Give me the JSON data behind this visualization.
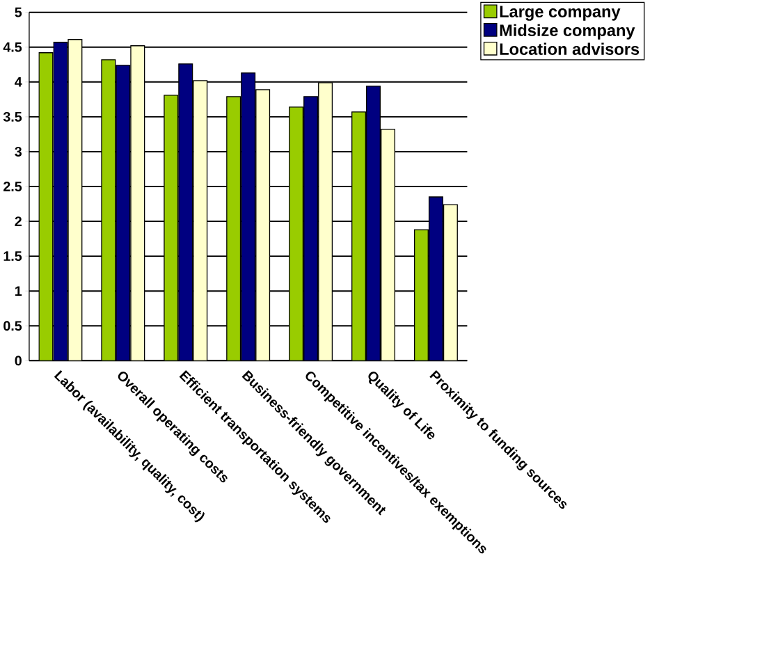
{
  "chart_data": {
    "type": "bar",
    "categories": [
      "Labor (availability, quality, cost)",
      "Overall operating costs",
      "Efficient transportation systems",
      "Business-friendly government",
      "Competitive incentives/tax exemptions",
      "Quality of Life",
      "Proximity to funding sources"
    ],
    "series": [
      {
        "name": "Large company",
        "color": "#99cc00",
        "values": [
          4.42,
          4.32,
          3.81,
          3.79,
          3.64,
          3.57,
          1.88
        ]
      },
      {
        "name": "Midsize company",
        "color": "#000080",
        "values": [
          4.57,
          4.24,
          4.26,
          4.13,
          3.79,
          3.94,
          2.35
        ]
      },
      {
        "name": "Location advisors",
        "color": "#ffffcc",
        "values": [
          4.61,
          4.52,
          4.02,
          3.89,
          3.99,
          3.32,
          2.24
        ]
      }
    ],
    "ylim": [
      0,
      5
    ],
    "yticks": [
      0,
      0.5,
      1,
      1.5,
      2,
      2.5,
      3,
      3.5,
      4,
      4.5,
      5
    ],
    "grid": "y",
    "legend": "top right"
  }
}
